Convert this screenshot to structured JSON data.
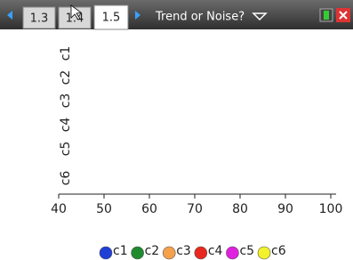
{
  "tabs": [
    "1.3",
    "1.4",
    "1.5"
  ],
  "page_title": "Trend or Noise?",
  "chart_data": {
    "type": "dot",
    "categories": [
      "c1",
      "c2",
      "c3",
      "c4",
      "c5",
      "c6"
    ],
    "xlim": [
      40,
      102
    ],
    "xticks": [
      40,
      50,
      60,
      70,
      80,
      90,
      100
    ],
    "series": [
      {
        "name": "c1",
        "color": "#1f3fd6"
      },
      {
        "name": "c2",
        "color": "#1e8a2e"
      },
      {
        "name": "c3",
        "color": "#f5a04a"
      },
      {
        "name": "c4",
        "color": "#e8281e"
      },
      {
        "name": "c5",
        "color": "#e020e0"
      },
      {
        "name": "c6",
        "color": "#f2f22a"
      }
    ]
  }
}
